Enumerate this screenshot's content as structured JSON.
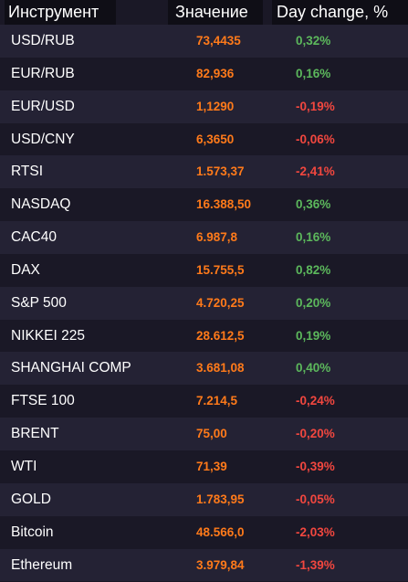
{
  "header": {
    "instrument": "Инструмент",
    "value": "Значение",
    "change": "Day change, %"
  },
  "colors": {
    "background": "#1a1826",
    "row_alt": "#242234",
    "header_bg": "#0f0e16",
    "value": "#ff7a1a",
    "positive": "#5cb85c",
    "negative": "#f2473f"
  },
  "rows": [
    {
      "name": "USD/RUB",
      "value": "73,4435",
      "change": "0,32%",
      "direction": "up"
    },
    {
      "name": "EUR/RUB",
      "value": "82,936",
      "change": "0,16%",
      "direction": "up"
    },
    {
      "name": "EUR/USD",
      "value": "1,1290",
      "change": "-0,19%",
      "direction": "down"
    },
    {
      "name": "USD/CNY",
      "value": "6,3650",
      "change": "-0,06%",
      "direction": "down"
    },
    {
      "name": "RTSI",
      "value": "1.573,37",
      "change": "-2,41%",
      "direction": "down"
    },
    {
      "name": "NASDAQ",
      "value": "16.388,50",
      "change": "0,36%",
      "direction": "up"
    },
    {
      "name": "CAC40",
      "value": "6.987,8",
      "change": "0,16%",
      "direction": "up"
    },
    {
      "name": "DAX",
      "value": "15.755,5",
      "change": "0,82%",
      "direction": "up"
    },
    {
      "name": "S&P 500",
      "value": "4.720,25",
      "change": "0,20%",
      "direction": "up"
    },
    {
      "name": "NIKKEI 225",
      "value": "28.612,5",
      "change": "0,19%",
      "direction": "up"
    },
    {
      "name": "SHANGHAI COMP",
      "value": "3.681,08",
      "change": "0,40%",
      "direction": "up"
    },
    {
      "name": "FTSE 100",
      "value": "7.214,5",
      "change": "-0,24%",
      "direction": "down"
    },
    {
      "name": "BRENT",
      "value": "75,00",
      "change": "-0,20%",
      "direction": "down"
    },
    {
      "name": "WTI",
      "value": "71,39",
      "change": "-0,39%",
      "direction": "down"
    },
    {
      "name": "GOLD",
      "value": "1.783,95",
      "change": "-0,05%",
      "direction": "down"
    },
    {
      "name": "Bitcoin",
      "value": "48.566,0",
      "change": "-2,03%",
      "direction": "down"
    },
    {
      "name": "Ethereum",
      "value": "3.979,84",
      "change": "-1,39%",
      "direction": "down"
    }
  ]
}
